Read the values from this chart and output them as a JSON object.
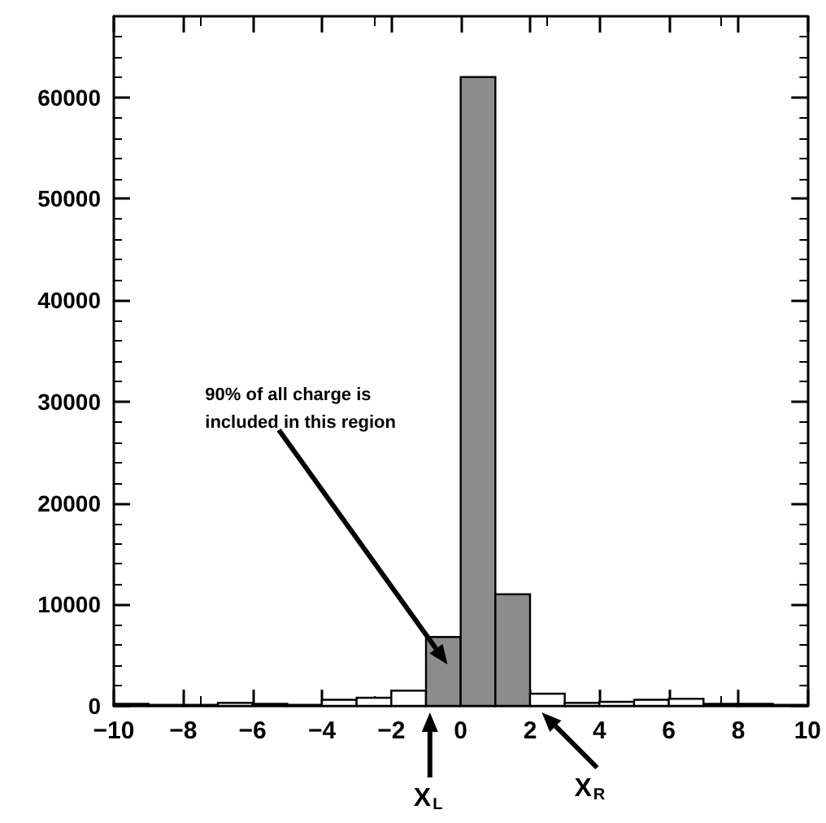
{
  "chart_data": {
    "type": "histogram",
    "bins": [
      -10,
      -9,
      -8,
      -7,
      -6,
      -5,
      -4,
      -3,
      -2,
      -1,
      0,
      1,
      2,
      3,
      4,
      5,
      6,
      7,
      8,
      9,
      10
    ],
    "values": [
      200,
      100,
      100,
      300,
      200,
      100,
      600,
      800,
      1500,
      6800,
      62000,
      11000,
      1200,
      300,
      400,
      600,
      700,
      200,
      200,
      100
    ],
    "colors": [
      "#ffffff",
      "#ffffff",
      "#ffffff",
      "#ffffff",
      "#ffffff",
      "#ffffff",
      "#ffffff",
      "#ffffff",
      "#ffffff",
      "#8c8c8c",
      "#8c8c8c",
      "#8c8c8c",
      "#ffffff",
      "#ffffff",
      "#ffffff",
      "#ffffff",
      "#ffffff",
      "#ffffff",
      "#ffffff",
      "#ffffff"
    ],
    "xlim": [
      -10,
      10
    ],
    "xticks": [
      -10,
      -8,
      -6,
      -4,
      -2,
      0,
      2,
      4,
      6,
      8,
      10
    ],
    "ylim": [
      0,
      68000
    ],
    "yticks": [
      0,
      10000,
      20000,
      30000,
      40000,
      50000,
      60000
    ],
    "grid": false,
    "annotations": [
      "90% of all charge is included in this region",
      "X$_{L}$",
      "X$_{R}$"
    ]
  }
}
